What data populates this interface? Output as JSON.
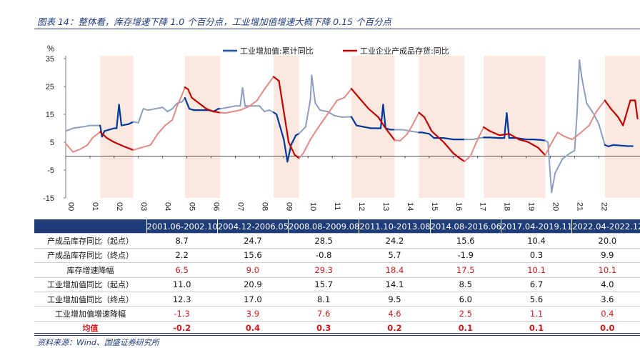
{
  "figure": {
    "title": "图表 14：整体看，库存增速下降 1.0 个百分点，工业增加值增速大概下降 0.15 个百分点",
    "source": "资料来源：Wind、国盛证券研究所"
  },
  "chart_data": {
    "type": "line",
    "ylabel": "%",
    "ylim": [
      -15,
      35
    ],
    "yticks": [
      -15,
      -5,
      5,
      15,
      25,
      35
    ],
    "xlim": [
      2000,
      2023.7
    ],
    "xtick_labels": [
      "00",
      "01",
      "02",
      "03",
      "04",
      "05",
      "06",
      "07",
      "08",
      "09",
      "10",
      "11",
      "12",
      "13",
      "14",
      "15",
      "16",
      "17",
      "18",
      "19",
      "20",
      "21",
      "22"
    ],
    "legend_position": "top",
    "shaded_periods": [
      [
        2001.42,
        2002.79
      ],
      [
        2004.92,
        2006.38
      ],
      [
        2008.58,
        2009.63
      ],
      [
        2011.79,
        2013.58
      ],
      [
        2014.58,
        2016.46
      ],
      [
        2017.25,
        2019.79
      ],
      [
        2022.25,
        2023.7
      ]
    ],
    "series": [
      {
        "name": "工业增加值:累计同比",
        "color": "#1f4e9e",
        "highlight_color": "#00399a",
        "muted_color": "#8c9ec0",
        "points": [
          [
            2000.0,
            9
          ],
          [
            2000.3,
            10
          ],
          [
            2000.7,
            10.5
          ],
          [
            2001.0,
            11
          ],
          [
            2001.3,
            11
          ],
          [
            2001.42,
            11
          ],
          [
            2001.5,
            7
          ],
          [
            2001.6,
            9
          ],
          [
            2001.8,
            9.5
          ],
          [
            2002.0,
            10
          ],
          [
            2002.1,
            10
          ],
          [
            2002.2,
            18.5
          ],
          [
            2002.3,
            11
          ],
          [
            2002.6,
            11.5
          ],
          [
            2002.79,
            12.3
          ],
          [
            2003.0,
            12
          ],
          [
            2003.2,
            17
          ],
          [
            2003.4,
            16.5
          ],
          [
            2003.7,
            17
          ],
          [
            2004.0,
            17.5
          ],
          [
            2004.2,
            16
          ],
          [
            2004.4,
            17
          ],
          [
            2004.6,
            19
          ],
          [
            2004.8,
            19.5
          ],
          [
            2004.92,
            20.9
          ],
          [
            2005.1,
            17
          ],
          [
            2005.3,
            16.5
          ],
          [
            2005.6,
            16.5
          ],
          [
            2005.9,
            16.5
          ],
          [
            2006.1,
            16
          ],
          [
            2006.3,
            17
          ],
          [
            2006.38,
            17
          ],
          [
            2006.7,
            17.5
          ],
          [
            2007.0,
            18
          ],
          [
            2007.2,
            18
          ],
          [
            2007.3,
            24.5
          ],
          [
            2007.4,
            18
          ],
          [
            2007.7,
            18
          ],
          [
            2008.0,
            18
          ],
          [
            2008.2,
            16
          ],
          [
            2008.4,
            16.5
          ],
          [
            2008.58,
            15.7
          ],
          [
            2008.7,
            15
          ],
          [
            2009.0,
            6
          ],
          [
            2009.15,
            -2
          ],
          [
            2009.3,
            4
          ],
          [
            2009.5,
            7.5
          ],
          [
            2009.63,
            8.1
          ],
          [
            2009.9,
            10.5
          ],
          [
            2010.1,
            20.5
          ],
          [
            2010.15,
            29
          ],
          [
            2010.3,
            19
          ],
          [
            2010.5,
            16.5
          ],
          [
            2010.8,
            16
          ],
          [
            2011.1,
            14.5
          ],
          [
            2011.4,
            14
          ],
          [
            2011.79,
            14.1
          ],
          [
            2012.0,
            11
          ],
          [
            2012.3,
            10.5
          ],
          [
            2012.6,
            10
          ],
          [
            2012.9,
            10
          ],
          [
            2013.0,
            10
          ],
          [
            2013.1,
            18.5
          ],
          [
            2013.2,
            10
          ],
          [
            2013.4,
            9.5
          ],
          [
            2013.58,
            9.5
          ],
          [
            2013.9,
            9.5
          ],
          [
            2014.2,
            9
          ],
          [
            2014.58,
            8.5
          ],
          [
            2014.7,
            8.5
          ],
          [
            2015.0,
            8
          ],
          [
            2015.2,
            6.5
          ],
          [
            2015.6,
            6.5
          ],
          [
            2016.0,
            6
          ],
          [
            2016.3,
            6
          ],
          [
            2016.46,
            6
          ],
          [
            2016.8,
            6
          ],
          [
            2017.1,
            6.5
          ],
          [
            2017.25,
            6.7
          ],
          [
            2017.5,
            6.7
          ],
          [
            2017.9,
            6.5
          ],
          [
            2018.1,
            6.5
          ],
          [
            2018.2,
            15.5
          ],
          [
            2018.3,
            6.5
          ],
          [
            2018.6,
            6.5
          ],
          [
            2019.0,
            6
          ],
          [
            2019.3,
            6
          ],
          [
            2019.6,
            5.8
          ],
          [
            2019.79,
            5.6
          ],
          [
            2019.9,
            5
          ],
          [
            2020.05,
            -13
          ],
          [
            2020.2,
            -6
          ],
          [
            2020.5,
            -1
          ],
          [
            2020.8,
            1
          ],
          [
            2021.0,
            2
          ],
          [
            2021.1,
            15
          ],
          [
            2021.2,
            34.5
          ],
          [
            2021.3,
            28
          ],
          [
            2021.5,
            19
          ],
          [
            2021.8,
            15
          ],
          [
            2022.0,
            11.5
          ],
          [
            2022.25,
            4
          ],
          [
            2022.4,
            3.5
          ],
          [
            2022.6,
            4
          ],
          [
            2022.9,
            3.8
          ],
          [
            2023.2,
            3.6
          ],
          [
            2023.4,
            3.6
          ]
        ]
      },
      {
        "name": "工业企业产成品存货:同比",
        "color": "#c00000",
        "highlight_color": "#c00000",
        "muted_color": "#e28a84",
        "points": [
          [
            2000.0,
            4.5
          ],
          [
            2000.3,
            1.5
          ],
          [
            2000.6,
            2.5
          ],
          [
            2000.9,
            4
          ],
          [
            2001.1,
            6.5
          ],
          [
            2001.42,
            8.7
          ],
          [
            2001.7,
            6.5
          ],
          [
            2002.0,
            5
          ],
          [
            2002.4,
            3.5
          ],
          [
            2002.79,
            2.2
          ],
          [
            2003.1,
            3
          ],
          [
            2003.5,
            4
          ],
          [
            2003.8,
            8
          ],
          [
            2004.1,
            11
          ],
          [
            2004.4,
            13
          ],
          [
            2004.6,
            18
          ],
          [
            2004.8,
            22
          ],
          [
            2004.92,
            24.7
          ],
          [
            2005.05,
            24
          ],
          [
            2005.2,
            21
          ],
          [
            2005.5,
            19
          ],
          [
            2005.8,
            17
          ],
          [
            2006.1,
            16
          ],
          [
            2006.38,
            15.6
          ],
          [
            2006.6,
            15.5
          ],
          [
            2006.9,
            16
          ],
          [
            2007.2,
            16.5
          ],
          [
            2007.6,
            18
          ],
          [
            2007.9,
            20
          ],
          [
            2008.2,
            24
          ],
          [
            2008.58,
            28.5
          ],
          [
            2008.8,
            27
          ],
          [
            2009.0,
            16
          ],
          [
            2009.2,
            5
          ],
          [
            2009.45,
            0.5
          ],
          [
            2009.63,
            -0.8
          ],
          [
            2009.8,
            1
          ],
          [
            2010.1,
            6
          ],
          [
            2010.4,
            10
          ],
          [
            2010.8,
            15
          ],
          [
            2011.2,
            20
          ],
          [
            2011.5,
            21
          ],
          [
            2011.79,
            24.2
          ],
          [
            2012.1,
            21
          ],
          [
            2012.5,
            17
          ],
          [
            2012.9,
            14
          ],
          [
            2013.2,
            10
          ],
          [
            2013.58,
            5.7
          ],
          [
            2013.8,
            5.5
          ],
          [
            2014.1,
            8
          ],
          [
            2014.3,
            11
          ],
          [
            2014.58,
            15.6
          ],
          [
            2014.8,
            14
          ],
          [
            2015.1,
            9
          ],
          [
            2015.6,
            5
          ],
          [
            2016.0,
            1
          ],
          [
            2016.3,
            -1
          ],
          [
            2016.46,
            -1.9
          ],
          [
            2016.7,
            0
          ],
          [
            2017.0,
            6
          ],
          [
            2017.25,
            10.4
          ],
          [
            2017.5,
            9
          ],
          [
            2017.9,
            7.5
          ],
          [
            2018.3,
            8
          ],
          [
            2018.7,
            6
          ],
          [
            2019.1,
            5
          ],
          [
            2019.5,
            3
          ],
          [
            2019.79,
            0.3
          ],
          [
            2020.0,
            4
          ],
          [
            2020.3,
            8.5
          ],
          [
            2020.6,
            7
          ],
          [
            2020.9,
            6
          ],
          [
            2021.2,
            8
          ],
          [
            2021.6,
            11
          ],
          [
            2021.9,
            16
          ],
          [
            2022.25,
            20
          ],
          [
            2022.5,
            17
          ],
          [
            2022.8,
            14
          ],
          [
            2023.0,
            11
          ],
          [
            2023.3,
            20
          ],
          [
            2023.5,
            20
          ],
          [
            2023.6,
            13.5
          ]
        ]
      }
    ]
  },
  "table": {
    "headers": [
      "",
      "2001.06-2002.10",
      "2004.12-2006.05",
      "2008.08-2009.08",
      "2011.10-2013.08",
      "2014.08-2016.06",
      "2017.04-2019.11",
      "2022.04-2022.12"
    ],
    "rows": [
      {
        "label": "产成品库存同比（起点）",
        "values": [
          "8.7",
          "24.7",
          "28.5",
          "24.2",
          "15.6",
          "10.4",
          "20.0"
        ],
        "style": ""
      },
      {
        "label": "产成品库存同比（终点）",
        "values": [
          "2.2",
          "15.6",
          "-0.8",
          "5.7",
          "-1.9",
          "0.3",
          "9.9"
        ],
        "style": ""
      },
      {
        "label": "库存增速降幅",
        "values": [
          "6.5",
          "9.0",
          "29.3",
          "18.4",
          "17.5",
          "10.1",
          "10.1"
        ],
        "style": "red"
      },
      {
        "label": "工业增加值同比（起点）",
        "values": [
          "11.0",
          "20.9",
          "15.7",
          "14.1",
          "8.5",
          "6.7",
          "4.0"
        ],
        "style": ""
      },
      {
        "label": "工业增加值同比（终点）",
        "values": [
          "12.3",
          "17.0",
          "8.1",
          "9.5",
          "6.0",
          "5.6",
          "3.6"
        ],
        "style": ""
      },
      {
        "label": "工业增加值增速降幅",
        "values": [
          "-1.3",
          "3.9",
          "7.6",
          "4.6",
          "2.5",
          "1.1",
          "0.4"
        ],
        "style": "red"
      },
      {
        "label": "均值",
        "values": [
          "-0.2",
          "0.4",
          "0.3",
          "0.2",
          "0.1",
          "0.1",
          "0.0"
        ],
        "style": "bold"
      }
    ]
  }
}
